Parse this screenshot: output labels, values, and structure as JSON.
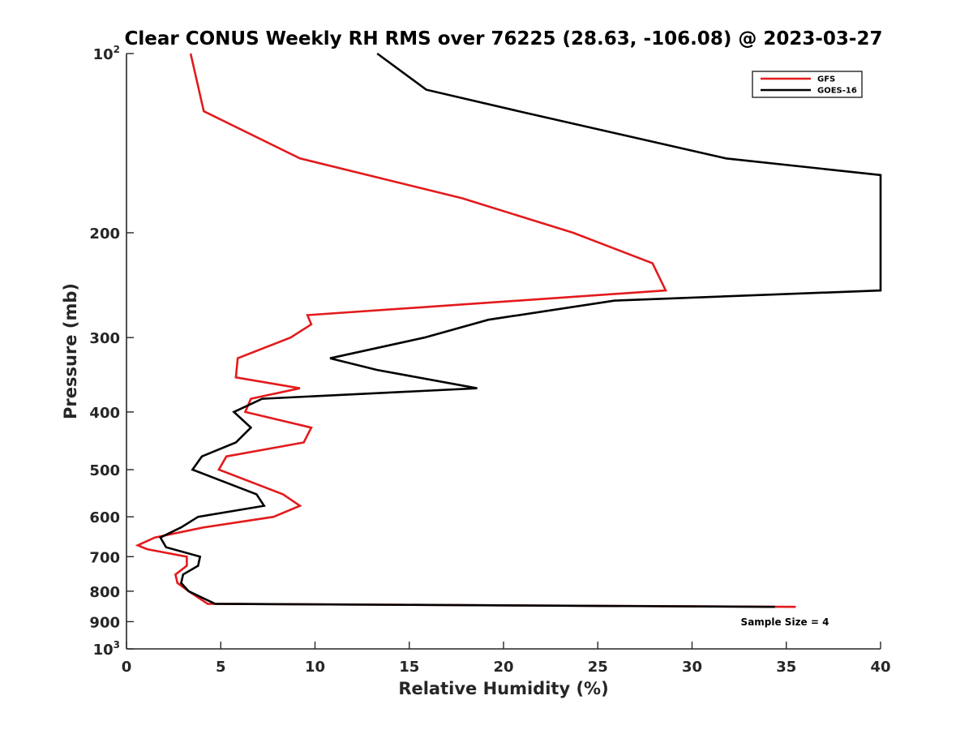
{
  "chart_data": {
    "type": "line",
    "title": "Clear CONUS Weekly RH RMS over 76225 (28.63, -106.08) @ 2023-03-27",
    "xlabel": "Relative Humidity (%)",
    "ylabel": "Pressure (mb)",
    "xlim": [
      0,
      40
    ],
    "ylim": [
      100,
      1000
    ],
    "y_scale": "log",
    "y_reversed": true,
    "grid": false,
    "legend_position": "top-right",
    "x_ticks": [
      "0",
      "5",
      "10",
      "15",
      "20",
      "25",
      "30",
      "35",
      "40"
    ],
    "y_ticks": [
      {
        "base": "10",
        "exp": "2"
      },
      {
        "label": "200"
      },
      {
        "label": "300"
      },
      {
        "label": "400"
      },
      {
        "label": "500"
      },
      {
        "label": "600"
      },
      {
        "label": "700"
      },
      {
        "label": "800"
      },
      {
        "label": "900"
      },
      {
        "base": "10",
        "exp": "3"
      }
    ],
    "annotation": "Sample Size = 4",
    "series": [
      {
        "name": "GFS",
        "color": "#e31a1c",
        "points": [
          [
            3.4,
            100
          ],
          [
            4.1,
            125
          ],
          [
            9.2,
            150
          ],
          [
            17.8,
            175
          ],
          [
            23.7,
            200
          ],
          [
            27.9,
            225
          ],
          [
            28.6,
            250
          ],
          [
            9.6,
            275
          ],
          [
            9.8,
            285
          ],
          [
            8.7,
            300
          ],
          [
            5.9,
            325
          ],
          [
            5.8,
            350
          ],
          [
            9.2,
            365
          ],
          [
            6.6,
            380
          ],
          [
            6.3,
            400
          ],
          [
            9.8,
            425
          ],
          [
            9.4,
            450
          ],
          [
            5.3,
            475
          ],
          [
            4.9,
            500
          ],
          [
            8.3,
            550
          ],
          [
            9.2,
            575
          ],
          [
            7.8,
            600
          ],
          [
            4.1,
            625
          ],
          [
            1.5,
            650
          ],
          [
            0.6,
            670
          ],
          [
            1.1,
            680
          ],
          [
            3.2,
            700
          ],
          [
            3.2,
            725
          ],
          [
            2.6,
            750
          ],
          [
            2.7,
            775
          ],
          [
            3.3,
            800
          ],
          [
            4.3,
            840
          ],
          [
            35.5,
            850
          ]
        ]
      },
      {
        "name": "GOES-16",
        "color": "#000000",
        "points": [
          [
            13.3,
            100
          ],
          [
            15.9,
            115
          ],
          [
            20.8,
            125
          ],
          [
            31.8,
            150
          ],
          [
            40.0,
            160
          ],
          [
            40.0,
            250
          ],
          [
            25.9,
            260
          ],
          [
            19.2,
            280
          ],
          [
            15.8,
            300
          ],
          [
            10.8,
            325
          ],
          [
            13.3,
            340
          ],
          [
            18.6,
            365
          ],
          [
            7.2,
            380
          ],
          [
            5.7,
            400
          ],
          [
            6.6,
            425
          ],
          [
            5.8,
            450
          ],
          [
            4.0,
            475
          ],
          [
            3.5,
            500
          ],
          [
            6.9,
            550
          ],
          [
            7.3,
            575
          ],
          [
            3.8,
            600
          ],
          [
            2.9,
            625
          ],
          [
            1.8,
            650
          ],
          [
            2.1,
            675
          ],
          [
            3.9,
            700
          ],
          [
            3.8,
            725
          ],
          [
            3.0,
            750
          ],
          [
            2.9,
            775
          ],
          [
            3.3,
            800
          ],
          [
            4.7,
            840
          ],
          [
            34.4,
            850
          ]
        ]
      }
    ]
  }
}
